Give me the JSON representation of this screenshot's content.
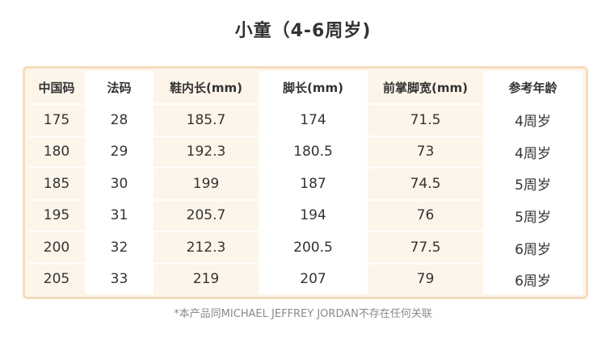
{
  "title": "小童（4-6周岁)",
  "table": {
    "headers": [
      "中国码",
      "法码",
      "鞋内长(mm)",
      "脚长(mm)",
      "前掌脚宽(mm)",
      "参考年龄"
    ],
    "rows": [
      [
        "175",
        "28",
        "185.7",
        "174",
        "71.5",
        "4周岁"
      ],
      [
        "180",
        "29",
        "192.3",
        "180.5",
        "73",
        "4周岁"
      ],
      [
        "185",
        "30",
        "199",
        "187",
        "74.5",
        "5周岁"
      ],
      [
        "195",
        "31",
        "205.7",
        "194",
        "76",
        "5周岁"
      ],
      [
        "200",
        "32",
        "212.3",
        "200.5",
        "77.5",
        "6周岁"
      ],
      [
        "205",
        "33",
        "219",
        "207",
        "79",
        "6周岁"
      ]
    ]
  },
  "footnote": "*本产品同MICHAEL JEFFREY JORDAN不存在任何关联"
}
